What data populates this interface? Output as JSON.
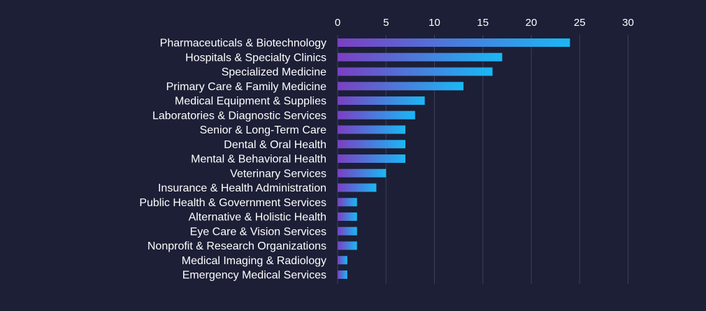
{
  "colors": {
    "background": "#1c1f36",
    "gridline": "#3d4159",
    "text": "#ffffff",
    "bar_gradient_start": "#7b3fc2",
    "bar_gradient_end": "#1ab8f5"
  },
  "chart_data": {
    "type": "bar",
    "orientation": "horizontal",
    "title": "",
    "xlabel": "",
    "ylabel": "",
    "xlim": [
      0,
      30
    ],
    "x_ticks": [
      0,
      5,
      10,
      15,
      20,
      25,
      30
    ],
    "x_axis_position": "top",
    "grid": true,
    "legend": "none",
    "categories": [
      "Pharmaceuticals & Biotechnology",
      "Hospitals & Specialty Clinics",
      "Specialized Medicine",
      "Primary Care & Family Medicine",
      "Medical Equipment & Supplies",
      "Laboratories & Diagnostic Services",
      "Senior & Long-Term Care",
      "Dental & Oral Health",
      "Mental & Behavioral Health",
      "Veterinary Services",
      "Insurance & Health Administration",
      "Public Health & Government Services",
      "Alternative & Holistic Health",
      "Eye Care & Vision Services",
      "Nonprofit & Research Organizations",
      "Medical Imaging & Radiology",
      "Emergency Medical Services"
    ],
    "values": [
      24,
      17,
      16,
      13,
      9,
      8,
      7,
      7,
      7,
      5,
      4,
      2,
      2,
      2,
      2,
      1,
      1
    ]
  }
}
